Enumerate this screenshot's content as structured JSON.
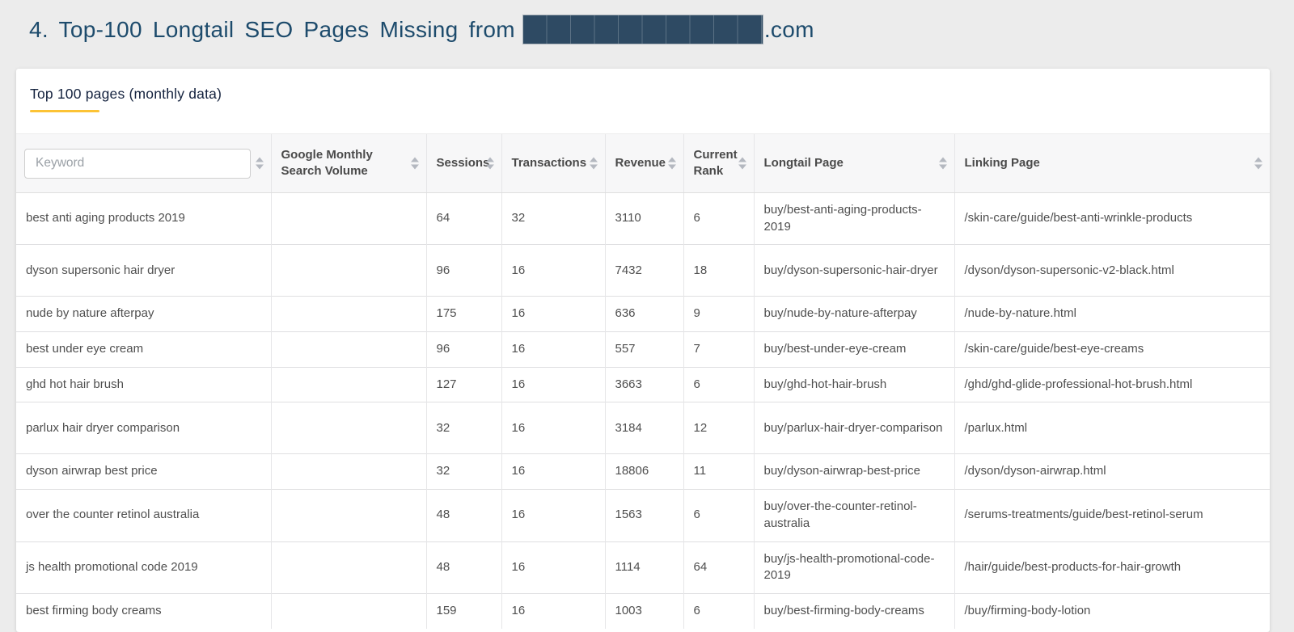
{
  "header": {
    "title": "4. Top-100 Longtail SEO Pages Missing from",
    "title_suffix": ".com"
  },
  "tab": {
    "label": "Top 100 pages (monthly data)"
  },
  "table": {
    "keyword_filter": {
      "placeholder": "Keyword"
    },
    "columns": [
      {
        "key": "search_volume",
        "label": "Google Monthly Search Volume"
      },
      {
        "key": "sessions",
        "label": "Sessions"
      },
      {
        "key": "transactions",
        "label": "Transactions"
      },
      {
        "key": "revenue",
        "label": "Revenue"
      },
      {
        "key": "current_rank",
        "label": "Current Rank"
      },
      {
        "key": "longtail_page",
        "label": "Longtail Page"
      },
      {
        "key": "linking_page",
        "label": "Linking Page"
      }
    ],
    "rows": [
      {
        "keyword": "best anti aging products 2019",
        "search_volume": "",
        "sessions": 64,
        "transactions": 32,
        "revenue": 3110,
        "current_rank": 6,
        "longtail_page": "buy/best-anti-aging-products-2019",
        "linking_page": "/skin-care/guide/best-anti-wrinkle-products"
      },
      {
        "keyword": "dyson supersonic hair dryer",
        "search_volume": "",
        "sessions": 96,
        "transactions": 16,
        "revenue": 7432,
        "current_rank": 18,
        "longtail_page": "buy/dyson-supersonic-hair-dryer",
        "linking_page": "/dyson/dyson-supersonic-v2-black.html"
      },
      {
        "keyword": "nude by nature afterpay",
        "search_volume": "",
        "sessions": 175,
        "transactions": 16,
        "revenue": 636,
        "current_rank": 9,
        "longtail_page": "buy/nude-by-nature-afterpay",
        "linking_page": "/nude-by-nature.html"
      },
      {
        "keyword": "best under eye cream",
        "search_volume": "",
        "sessions": 96,
        "transactions": 16,
        "revenue": 557,
        "current_rank": 7,
        "longtail_page": "buy/best-under-eye-cream",
        "linking_page": "/skin-care/guide/best-eye-creams"
      },
      {
        "keyword": "ghd hot hair brush",
        "search_volume": "",
        "sessions": 127,
        "transactions": 16,
        "revenue": 3663,
        "current_rank": 6,
        "longtail_page": "buy/ghd-hot-hair-brush",
        "linking_page": "/ghd/ghd-glide-professional-hot-brush.html"
      },
      {
        "keyword": "parlux hair dryer comparison",
        "search_volume": "",
        "sessions": 32,
        "transactions": 16,
        "revenue": 3184,
        "current_rank": 12,
        "longtail_page": "buy/parlux-hair-dryer-comparison",
        "linking_page": "/parlux.html"
      },
      {
        "keyword": "dyson airwrap best price",
        "search_volume": "",
        "sessions": 32,
        "transactions": 16,
        "revenue": 18806,
        "current_rank": 11,
        "longtail_page": "buy/dyson-airwrap-best-price",
        "linking_page": "/dyson/dyson-airwrap.html"
      },
      {
        "keyword": "over the counter retinol australia",
        "search_volume": "",
        "sessions": 48,
        "transactions": 16,
        "revenue": 1563,
        "current_rank": 6,
        "longtail_page": "buy/over-the-counter-retinol-australia",
        "linking_page": "/serums-treatments/guide/best-retinol-serum"
      },
      {
        "keyword": "js health promotional code 2019",
        "search_volume": "",
        "sessions": 48,
        "transactions": 16,
        "revenue": 1114,
        "current_rank": 64,
        "longtail_page": "buy/js-health-promotional-code-2019",
        "linking_page": "/hair/guide/best-products-for-hair-growth"
      },
      {
        "keyword": "best firming body creams",
        "search_volume": "",
        "sessions": 159,
        "transactions": 16,
        "revenue": 1003,
        "current_rank": 6,
        "longtail_page": "buy/best-firming-body-creams",
        "linking_page": "/buy/firming-body-lotion"
      }
    ],
    "tall_rows": [
      0,
      1,
      5,
      7,
      8
    ]
  },
  "colors": {
    "page_background": "#ececec",
    "title": "#1d4b6c",
    "redaction_block": "#2e4a63",
    "tab_underline": "#fcc335",
    "header_background": "#f7f7f8"
  }
}
